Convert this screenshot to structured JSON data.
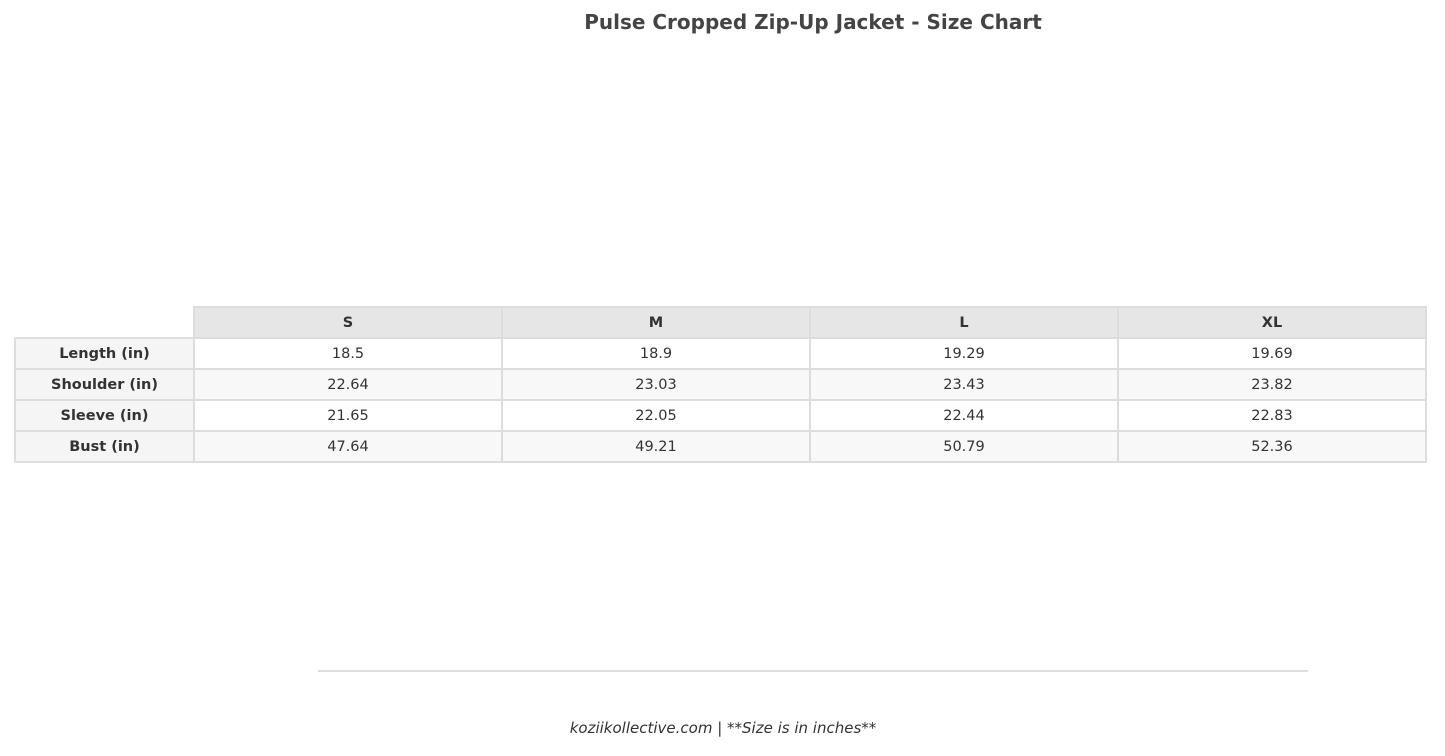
{
  "chart_data": {
    "type": "table",
    "title": "Pulse Cropped Zip-Up Jacket - Size Chart",
    "columns": [
      "S",
      "M",
      "L",
      "XL"
    ],
    "rows": [
      {
        "label": "Length (in)",
        "values": [
          "18.5",
          "18.9",
          "19.29",
          "19.69"
        ]
      },
      {
        "label": "Shoulder (in)",
        "values": [
          "22.64",
          "23.03",
          "23.43",
          "23.82"
        ]
      },
      {
        "label": "Sleeve (in)",
        "values": [
          "21.65",
          "22.05",
          "22.44",
          "22.83"
        ]
      },
      {
        "label": "Bust (in)",
        "values": [
          "47.64",
          "49.21",
          "50.79",
          "52.36"
        ]
      }
    ],
    "footer": "koziikollective.com | **Size is in inches**",
    "colors": {
      "header_bg": "#e6e6e6",
      "border": "#dddddd",
      "row_alt": "#f8f8f8",
      "text": "#333333",
      "title": "#444444"
    }
  }
}
